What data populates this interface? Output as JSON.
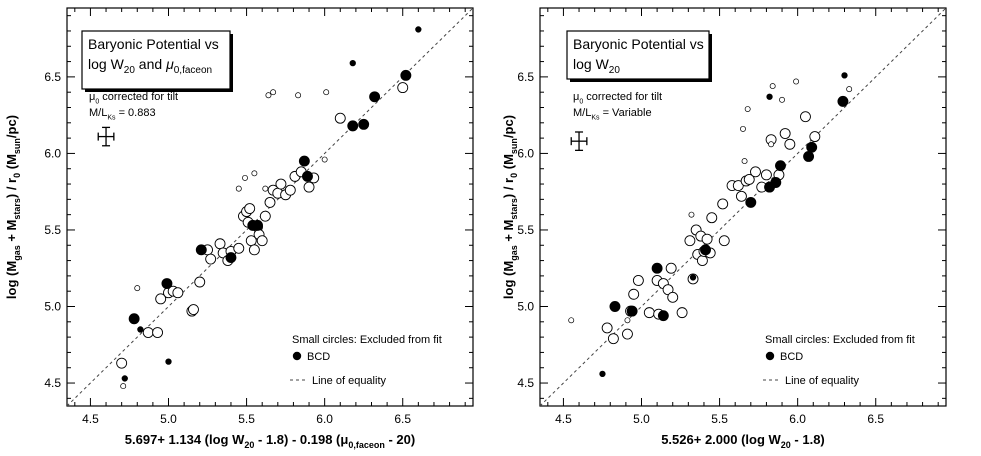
{
  "colors": {
    "ink": "#000000",
    "paper": "#ffffff",
    "equality_line": "#444444"
  },
  "chart_data": [
    {
      "type": "scatter",
      "title_lines": [
        "Baryonic Potential vs",
        "log W",
        "20",
        " and ",
        "μ",
        "0,faceon"
      ],
      "note_lines": [
        "μ",
        "0",
        " corrected for tilt",
        "M/L",
        "Ks",
        " = 0.883"
      ],
      "xlabel": "5.697+ 1.134 (log W20 - 1.8) - 0.198 (μ0,faceon - 20)",
      "xlabel_parts": [
        "5.697+ 1.134 (log W",
        "20",
        " - 1.8) - 0.198 (",
        "μ",
        "0,faceon",
        " - 20)"
      ],
      "ylabel_parts": [
        "log (M",
        "gas",
        " + M",
        "stars",
        ") / r",
        "0",
        " (M",
        "sun",
        "/pc)"
      ],
      "xlim": [
        4.35,
        6.95
      ],
      "ylim": [
        4.35,
        6.95
      ],
      "xticks": [
        4.5,
        5.0,
        5.5,
        6.0,
        6.5
      ],
      "yticks": [
        4.5,
        5.0,
        5.5,
        6.0,
        6.5
      ],
      "xtick_labels": [
        "4.5",
        "5.0",
        "5.5",
        "6.0",
        "6.5"
      ],
      "ytick_labels": [
        "4.5",
        "5.0",
        "5.5",
        "6.0",
        "6.5"
      ],
      "legend": {
        "excluded": "Small circles:  Excluded from fit",
        "bcd": "BCD",
        "equality": "Line of equality"
      },
      "error_bar": {
        "x": 4.6,
        "y": 6.11,
        "dx": 0.05,
        "dy": 0.06
      },
      "series": [
        {
          "name": "Included",
          "marker": "open-large",
          "points": [
            [
              4.7,
              4.63
            ],
            [
              4.87,
              4.83
            ],
            [
              4.93,
              4.83
            ],
            [
              4.95,
              5.05
            ],
            [
              5.0,
              5.09
            ],
            [
              5.03,
              5.1
            ],
            [
              5.06,
              5.09
            ],
            [
              5.15,
              4.97
            ],
            [
              5.16,
              4.98
            ],
            [
              5.2,
              5.16
            ],
            [
              5.25,
              5.37
            ],
            [
              5.27,
              5.31
            ],
            [
              5.33,
              5.41
            ],
            [
              5.35,
              5.35
            ],
            [
              5.38,
              5.3
            ],
            [
              5.4,
              5.36
            ],
            [
              5.45,
              5.38
            ],
            [
              5.48,
              5.59
            ],
            [
              5.5,
              5.62
            ],
            [
              5.52,
              5.64
            ],
            [
              5.51,
              5.55
            ],
            [
              5.53,
              5.43
            ],
            [
              5.55,
              5.37
            ],
            [
              5.57,
              5.52
            ],
            [
              5.58,
              5.47
            ],
            [
              5.6,
              5.43
            ],
            [
              5.62,
              5.59
            ],
            [
              5.65,
              5.68
            ],
            [
              5.67,
              5.76
            ],
            [
              5.7,
              5.74
            ],
            [
              5.72,
              5.8
            ],
            [
              5.75,
              5.73
            ],
            [
              5.78,
              5.76
            ],
            [
              5.81,
              5.85
            ],
            [
              5.85,
              5.88
            ],
            [
              5.9,
              5.78
            ],
            [
              5.93,
              5.84
            ],
            [
              6.1,
              6.23
            ],
            [
              6.5,
              6.43
            ]
          ]
        },
        {
          "name": "Excluded",
          "marker": "open-small",
          "points": [
            [
              4.71,
              4.48
            ],
            [
              4.8,
              5.12
            ],
            [
              5.45,
              5.77
            ],
            [
              5.49,
              5.84
            ],
            [
              5.55,
              5.87
            ],
            [
              5.62,
              5.77
            ],
            [
              5.64,
              6.38
            ],
            [
              5.67,
              6.4
            ],
            [
              5.83,
              6.38
            ],
            [
              6.0,
              5.96
            ],
            [
              6.01,
              6.4
            ]
          ]
        },
        {
          "name": "BCD",
          "marker": "filled-large",
          "points": [
            [
              4.78,
              4.92
            ],
            [
              4.99,
              5.15
            ],
            [
              5.21,
              5.37
            ],
            [
              5.4,
              5.32
            ],
            [
              5.54,
              5.53
            ],
            [
              5.57,
              5.53
            ],
            [
              5.87,
              5.95
            ],
            [
              5.89,
              5.85
            ],
            [
              6.18,
              6.18
            ],
            [
              6.25,
              6.19
            ],
            [
              6.32,
              6.37
            ],
            [
              6.52,
              6.51
            ]
          ]
        },
        {
          "name": "BCD excluded",
          "marker": "filled-small",
          "points": [
            [
              4.72,
              4.53
            ],
            [
              4.82,
              4.85
            ],
            [
              5.0,
              4.64
            ],
            [
              6.18,
              6.59
            ],
            [
              6.6,
              6.81
            ]
          ]
        }
      ]
    },
    {
      "type": "scatter",
      "title_lines": [
        "Baryonic Potential vs",
        "log W",
        "20"
      ],
      "note_lines": [
        "μ",
        "0",
        " corrected for tilt",
        "M/L",
        "Ks",
        " = Variable"
      ],
      "xlabel": "5.526+ 2.000 (log W20 - 1.8)",
      "xlabel_parts": [
        "5.526+ 2.000 (log W",
        "20",
        " - 1.8)"
      ],
      "ylabel_parts": [
        "log (M",
        "gas",
        " + M",
        "stars",
        ") / r",
        "0",
        " (M",
        "sun",
        "/pc)"
      ],
      "xlim": [
        4.35,
        6.95
      ],
      "ylim": [
        4.35,
        6.95
      ],
      "xticks": [
        4.5,
        5.0,
        5.5,
        6.0,
        6.5
      ],
      "yticks": [
        4.5,
        5.0,
        5.5,
        6.0,
        6.5
      ],
      "xtick_labels": [
        "4.5",
        "5.0",
        "5.5",
        "6.0",
        "6.5"
      ],
      "ytick_labels": [
        "4.5",
        "5.0",
        "5.5",
        "6.0",
        "6.5"
      ],
      "legend": {
        "excluded": "Small circles:  Excluded from fit",
        "bcd": "BCD",
        "equality": "Line of equality"
      },
      "error_bar": {
        "x": 4.6,
        "y": 6.08,
        "dx": 0.05,
        "dy": 0.06
      },
      "series": [
        {
          "name": "Included",
          "marker": "open-large",
          "points": [
            [
              4.78,
              4.86
            ],
            [
              4.82,
              4.79
            ],
            [
              4.91,
              4.82
            ],
            [
              4.93,
              4.97
            ],
            [
              4.95,
              5.08
            ],
            [
              4.98,
              5.17
            ],
            [
              5.05,
              4.96
            ],
            [
              5.1,
              5.17
            ],
            [
              5.11,
              4.95
            ],
            [
              5.14,
              5.15
            ],
            [
              5.17,
              5.11
            ],
            [
              5.19,
              5.25
            ],
            [
              5.2,
              5.06
            ],
            [
              5.26,
              4.96
            ],
            [
              5.31,
              5.43
            ],
            [
              5.33,
              5.18
            ],
            [
              5.35,
              5.5
            ],
            [
              5.36,
              5.34
            ],
            [
              5.38,
              5.46
            ],
            [
              5.39,
              5.3
            ],
            [
              5.4,
              5.36
            ],
            [
              5.42,
              5.44
            ],
            [
              5.44,
              5.35
            ],
            [
              5.45,
              5.58
            ],
            [
              5.52,
              5.67
            ],
            [
              5.53,
              5.43
            ],
            [
              5.58,
              5.79
            ],
            [
              5.62,
              5.79
            ],
            [
              5.64,
              5.72
            ],
            [
              5.67,
              5.82
            ],
            [
              5.69,
              5.83
            ],
            [
              5.73,
              5.88
            ],
            [
              5.77,
              5.78
            ],
            [
              5.8,
              5.86
            ],
            [
              5.83,
              6.09
            ],
            [
              5.88,
              5.86
            ],
            [
              5.92,
              6.13
            ],
            [
              5.95,
              6.06
            ],
            [
              6.05,
              6.24
            ],
            [
              6.11,
              6.11
            ]
          ]
        },
        {
          "name": "Excluded",
          "marker": "open-small",
          "points": [
            [
              4.55,
              4.91
            ],
            [
              4.91,
              4.91
            ],
            [
              5.32,
              5.6
            ],
            [
              5.65,
              6.16
            ],
            [
              5.66,
              5.95
            ],
            [
              5.68,
              6.29
            ],
            [
              5.83,
              6.06
            ],
            [
              5.84,
              6.44
            ],
            [
              5.9,
              6.35
            ],
            [
              5.99,
              6.47
            ],
            [
              6.33,
              6.42
            ]
          ]
        },
        {
          "name": "BCD",
          "marker": "filled-large",
          "points": [
            [
              4.83,
              5.0
            ],
            [
              4.94,
              4.97
            ],
            [
              5.1,
              5.25
            ],
            [
              5.14,
              4.94
            ],
            [
              5.41,
              5.37
            ],
            [
              5.7,
              5.68
            ],
            [
              5.82,
              5.78
            ],
            [
              5.86,
              5.81
            ],
            [
              5.89,
              5.92
            ],
            [
              6.07,
              5.98
            ],
            [
              6.09,
              6.04
            ],
            [
              6.29,
              6.34
            ]
          ]
        },
        {
          "name": "BCD excluded",
          "marker": "filled-small",
          "points": [
            [
              4.75,
              4.56
            ],
            [
              5.33,
              5.19
            ],
            [
              5.82,
              6.37
            ],
            [
              6.3,
              6.51
            ]
          ]
        }
      ]
    }
  ]
}
